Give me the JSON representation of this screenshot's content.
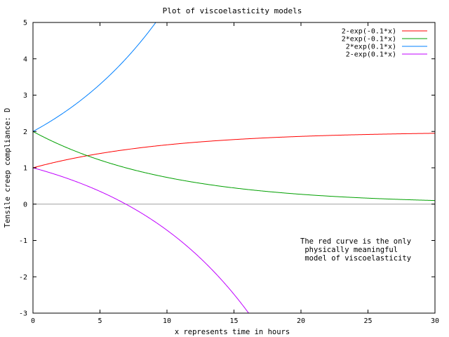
{
  "chart_data": {
    "type": "line",
    "title": "Plot of viscoelasticity models",
    "xlabel": "x represents time in hours",
    "ylabel": "Tensile creep compliance: D",
    "xlim": [
      0,
      30
    ],
    "ylim": [
      -3,
      5
    ],
    "x_ticks": [
      "0",
      "5",
      "10",
      "15",
      "20",
      "25",
      "30"
    ],
    "y_ticks": [
      "-3",
      "-2",
      "-1",
      "0",
      "1",
      "2",
      "3",
      "4",
      "5"
    ],
    "grid": false,
    "zero_axis": true,
    "legend_position": "top-right",
    "series": [
      {
        "name": "2-exp(-0.1*x)",
        "color": "#ff0000",
        "formula": "2-exp(-0.1*x)"
      },
      {
        "name": "2*exp(-0.1*x)",
        "color": "#00a000",
        "formula": "2*exp(-0.1*x)"
      },
      {
        "name": "2*exp(0.1*x)",
        "color": "#0080ff",
        "formula": "2*exp(0.1*x)"
      },
      {
        "name": "2-exp(0.1*x)",
        "color": "#c000ff",
        "formula": "2-exp(0.1*x)"
      }
    ],
    "annotation": [
      "The red curve is the only",
      " physically meaningful",
      " model of viscoelasticity"
    ]
  }
}
